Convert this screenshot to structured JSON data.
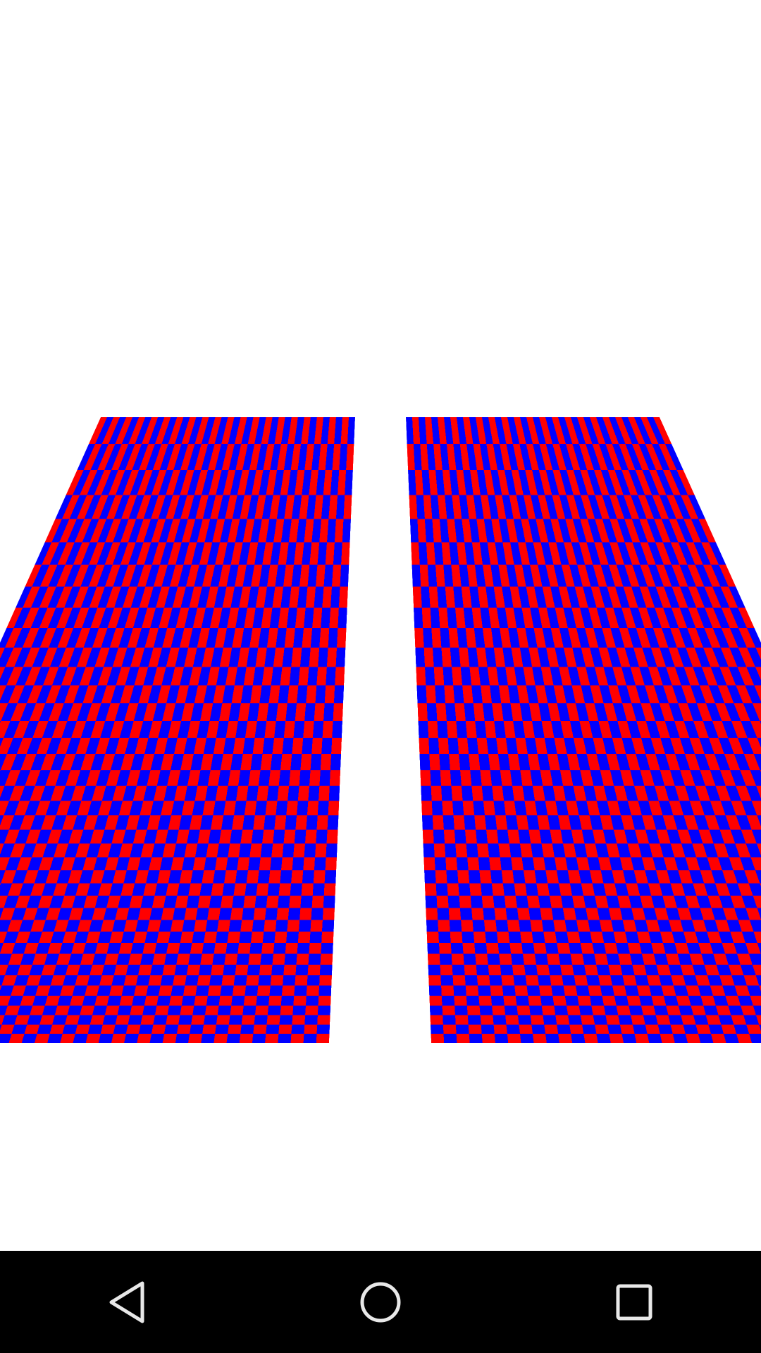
{
  "scene": {
    "background_color": "#ffffff",
    "planes": [
      {
        "name": "left-checkered-plane",
        "colors": [
          "#ff0000",
          "#0000ff"
        ]
      },
      {
        "name": "right-checkered-plane",
        "colors": [
          "#ff0000",
          "#0000ff"
        ]
      }
    ]
  },
  "navigation_bar": {
    "background_color": "#000000",
    "icon_color": "#e8e8e8",
    "buttons": [
      {
        "name": "back-button",
        "icon": "triangle-back-icon"
      },
      {
        "name": "home-button",
        "icon": "circle-home-icon"
      },
      {
        "name": "recents-button",
        "icon": "square-recents-icon"
      }
    ]
  }
}
